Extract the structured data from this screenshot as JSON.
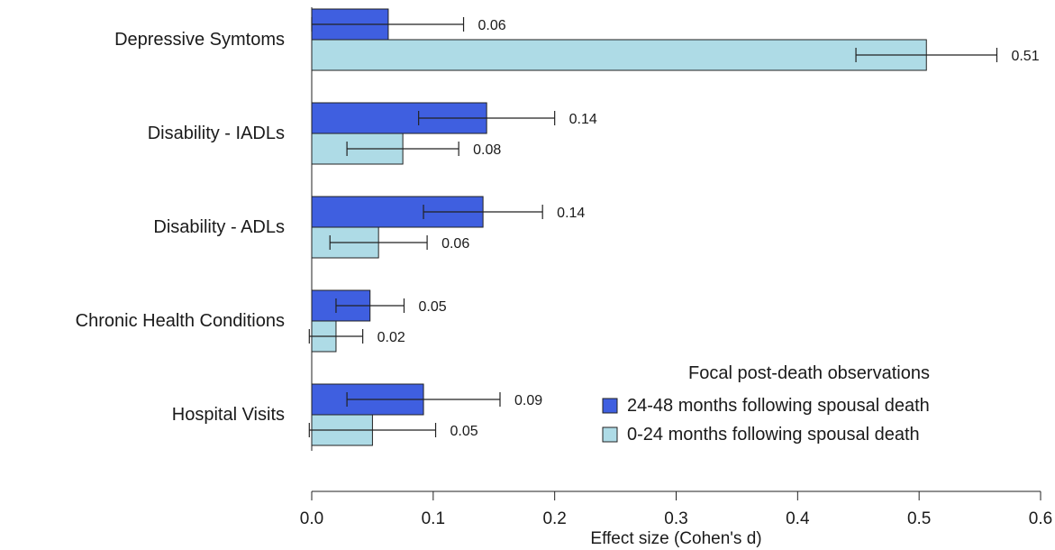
{
  "chart_data": {
    "type": "bar",
    "orientation": "horizontal",
    "categories": [
      "Depressive Symtoms",
      "Disability - IADLs",
      "Disability - ADLs",
      "Chronic Health Conditions",
      "Hospital Visits"
    ],
    "series": [
      {
        "name": "24-48 months following spousal death",
        "color": "#3f5fe0",
        "values": [
          0.063,
          0.144,
          0.141,
          0.048,
          0.092
        ],
        "labels": [
          "0.06",
          "0.14",
          "0.14",
          "0.05",
          "0.09"
        ],
        "ci_low": [
          0.0,
          0.088,
          0.092,
          0.02,
          0.029
        ],
        "ci_high": [
          0.125,
          0.2,
          0.19,
          0.076,
          0.155
        ]
      },
      {
        "name": "0-24 months following spousal death",
        "color": "#aedbe6",
        "values": [
          0.506,
          0.075,
          0.055,
          0.02,
          0.05
        ],
        "labels": [
          "0.51",
          "0.08",
          "0.06",
          "0.02",
          "0.05"
        ],
        "ci_low": [
          0.448,
          0.029,
          0.015,
          -0.002,
          -0.002
        ],
        "ci_high": [
          0.564,
          0.121,
          0.095,
          0.042,
          0.102
        ]
      }
    ],
    "xlabel": "Effect size (Cohen's d)",
    "xlim": [
      0,
      0.6
    ],
    "xticks": [
      0,
      0.1,
      0.2,
      0.3,
      0.4,
      0.5,
      0.6
    ],
    "xtick_labels": [
      "0.0",
      "0.1",
      "0.2",
      "0.3",
      "0.4",
      "0.5",
      "0.6"
    ],
    "legend_title": "Focal post-death observations",
    "legend_position": "bottom-right",
    "grid": false
  }
}
